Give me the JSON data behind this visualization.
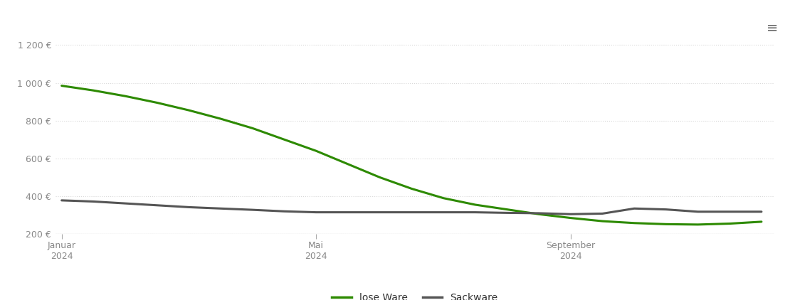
{
  "background_color": "#ffffff",
  "grid_color": "#d8d8d8",
  "ylim": [
    200,
    1280
  ],
  "yticks": [
    200,
    400,
    600,
    800,
    1000,
    1200
  ],
  "ytick_labels": [
    "200 €",
    "400 €",
    "600 €",
    "800 €",
    "1 000 €",
    "1 200 €"
  ],
  "x_tick_positions": [
    0,
    4,
    8
  ],
  "x_tick_labels": [
    "Januar\n2024",
    "Mai\n2024",
    "September\n2024"
  ],
  "legend_labels": [
    "lose Ware",
    "Sackware"
  ],
  "lose_ware_color": "#2d8a00",
  "sackware_color": "#555555",
  "line_width": 2.2,
  "lose_ware_x": [
    0,
    0.5,
    1,
    1.5,
    2,
    2.5,
    3,
    3.5,
    4,
    4.5,
    5,
    5.5,
    6,
    6.5,
    7,
    7.5,
    8,
    8.5,
    9,
    9.5,
    10,
    10.5,
    11
  ],
  "lose_ware_y": [
    985,
    960,
    930,
    895,
    855,
    810,
    760,
    700,
    640,
    570,
    500,
    440,
    390,
    355,
    330,
    305,
    285,
    268,
    258,
    252,
    250,
    255,
    265
  ],
  "sackware_x": [
    0,
    0.5,
    1,
    1.5,
    2,
    2.5,
    3,
    3.5,
    4,
    4.5,
    5,
    5.5,
    6,
    6.5,
    7,
    7.5,
    8,
    8.5,
    9,
    9.5,
    10,
    10.5,
    11
  ],
  "sackware_y": [
    378,
    372,
    362,
    352,
    342,
    335,
    328,
    320,
    315,
    315,
    315,
    315,
    315,
    315,
    312,
    310,
    305,
    308,
    335,
    330,
    318,
    318,
    318
  ]
}
